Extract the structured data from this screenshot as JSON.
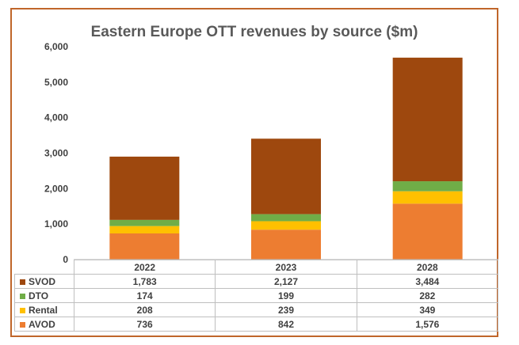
{
  "chart_data": {
    "type": "bar",
    "stacked": true,
    "title": "Eastern Europe OTT revenues by source ($m)",
    "categories": [
      "2022",
      "2023",
      "2028"
    ],
    "ylim": [
      0,
      6000
    ],
    "yticks": [
      "0",
      "1,000",
      "2,000",
      "3,000",
      "4,000",
      "5,000",
      "6,000"
    ],
    "ytick_values": [
      0,
      1000,
      2000,
      3000,
      4000,
      5000,
      6000
    ],
    "grid": false,
    "legend": "data-table-below",
    "series": [
      {
        "name": "AVOD",
        "color": "#ed7d31",
        "values": [
          736,
          842,
          1576
        ],
        "labels": [
          "736",
          "842",
          "1,576"
        ]
      },
      {
        "name": "Rental",
        "color": "#ffc000",
        "values": [
          208,
          239,
          349
        ],
        "labels": [
          "208",
          "239",
          "349"
        ]
      },
      {
        "name": "DTO",
        "color": "#70ad47",
        "values": [
          174,
          199,
          282
        ],
        "labels": [
          "174",
          "199",
          "282"
        ]
      },
      {
        "name": "SVOD",
        "color": "#9e480e",
        "values": [
          1783,
          2127,
          3484
        ],
        "labels": [
          "1,783",
          "2,127",
          "3,484"
        ]
      }
    ],
    "table_rows_order": [
      "SVOD",
      "DTO",
      "Rental",
      "AVOD"
    ]
  }
}
